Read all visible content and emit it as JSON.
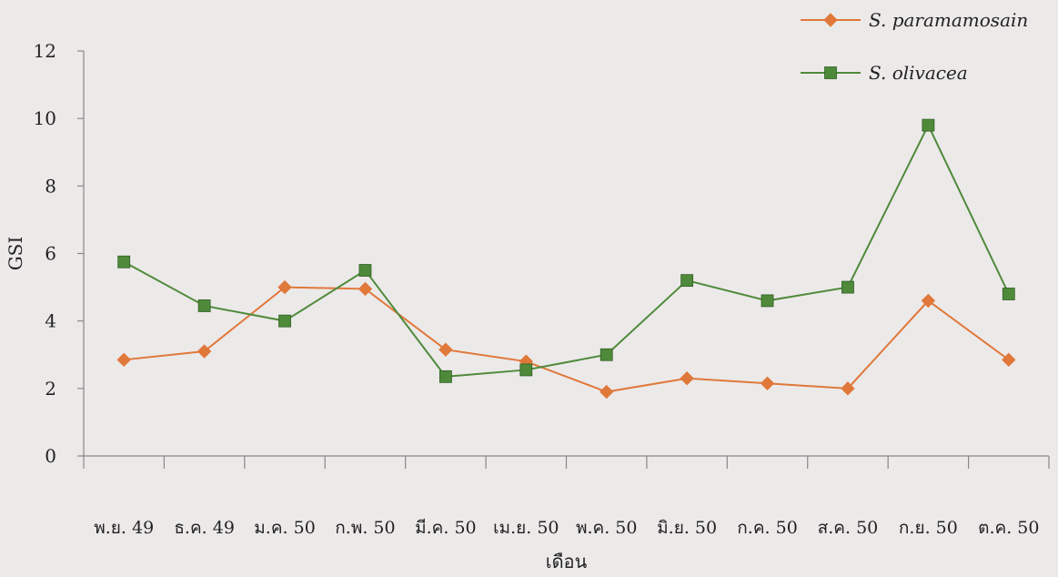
{
  "chart_data": {
    "type": "line",
    "title": "",
    "xlabel": "เดือน",
    "ylabel": "GSI",
    "ylim": [
      0,
      12
    ],
    "yticks": [
      "0",
      "2",
      "4",
      "6",
      "8",
      "10",
      "12"
    ],
    "categories": [
      "พ.ย. 49",
      "ธ.ค. 49",
      "ม.ค. 50",
      "ก.พ. 50",
      "มี.ค. 50",
      "เม.ย. 50",
      "พ.ค. 50",
      "มิ.ย. 50",
      "ก.ค. 50",
      "ส.ค. 50",
      "ก.ย. 50",
      "ต.ค. 50"
    ],
    "grid": false,
    "legend": "top-right",
    "series": [
      {
        "name": "S. paramamosain",
        "marker": "diamond",
        "color": "#e0783a",
        "values": [
          2.85,
          3.1,
          5.0,
          4.95,
          3.15,
          2.8,
          1.9,
          2.3,
          2.15,
          2.0,
          4.6,
          2.85
        ]
      },
      {
        "name": "S. olivacea",
        "marker": "square",
        "color": "#4f8a3a",
        "values": [
          5.75,
          4.45,
          4.0,
          5.5,
          2.35,
          2.55,
          3.0,
          5.2,
          4.6,
          5.0,
          9.8,
          4.8
        ]
      }
    ]
  }
}
